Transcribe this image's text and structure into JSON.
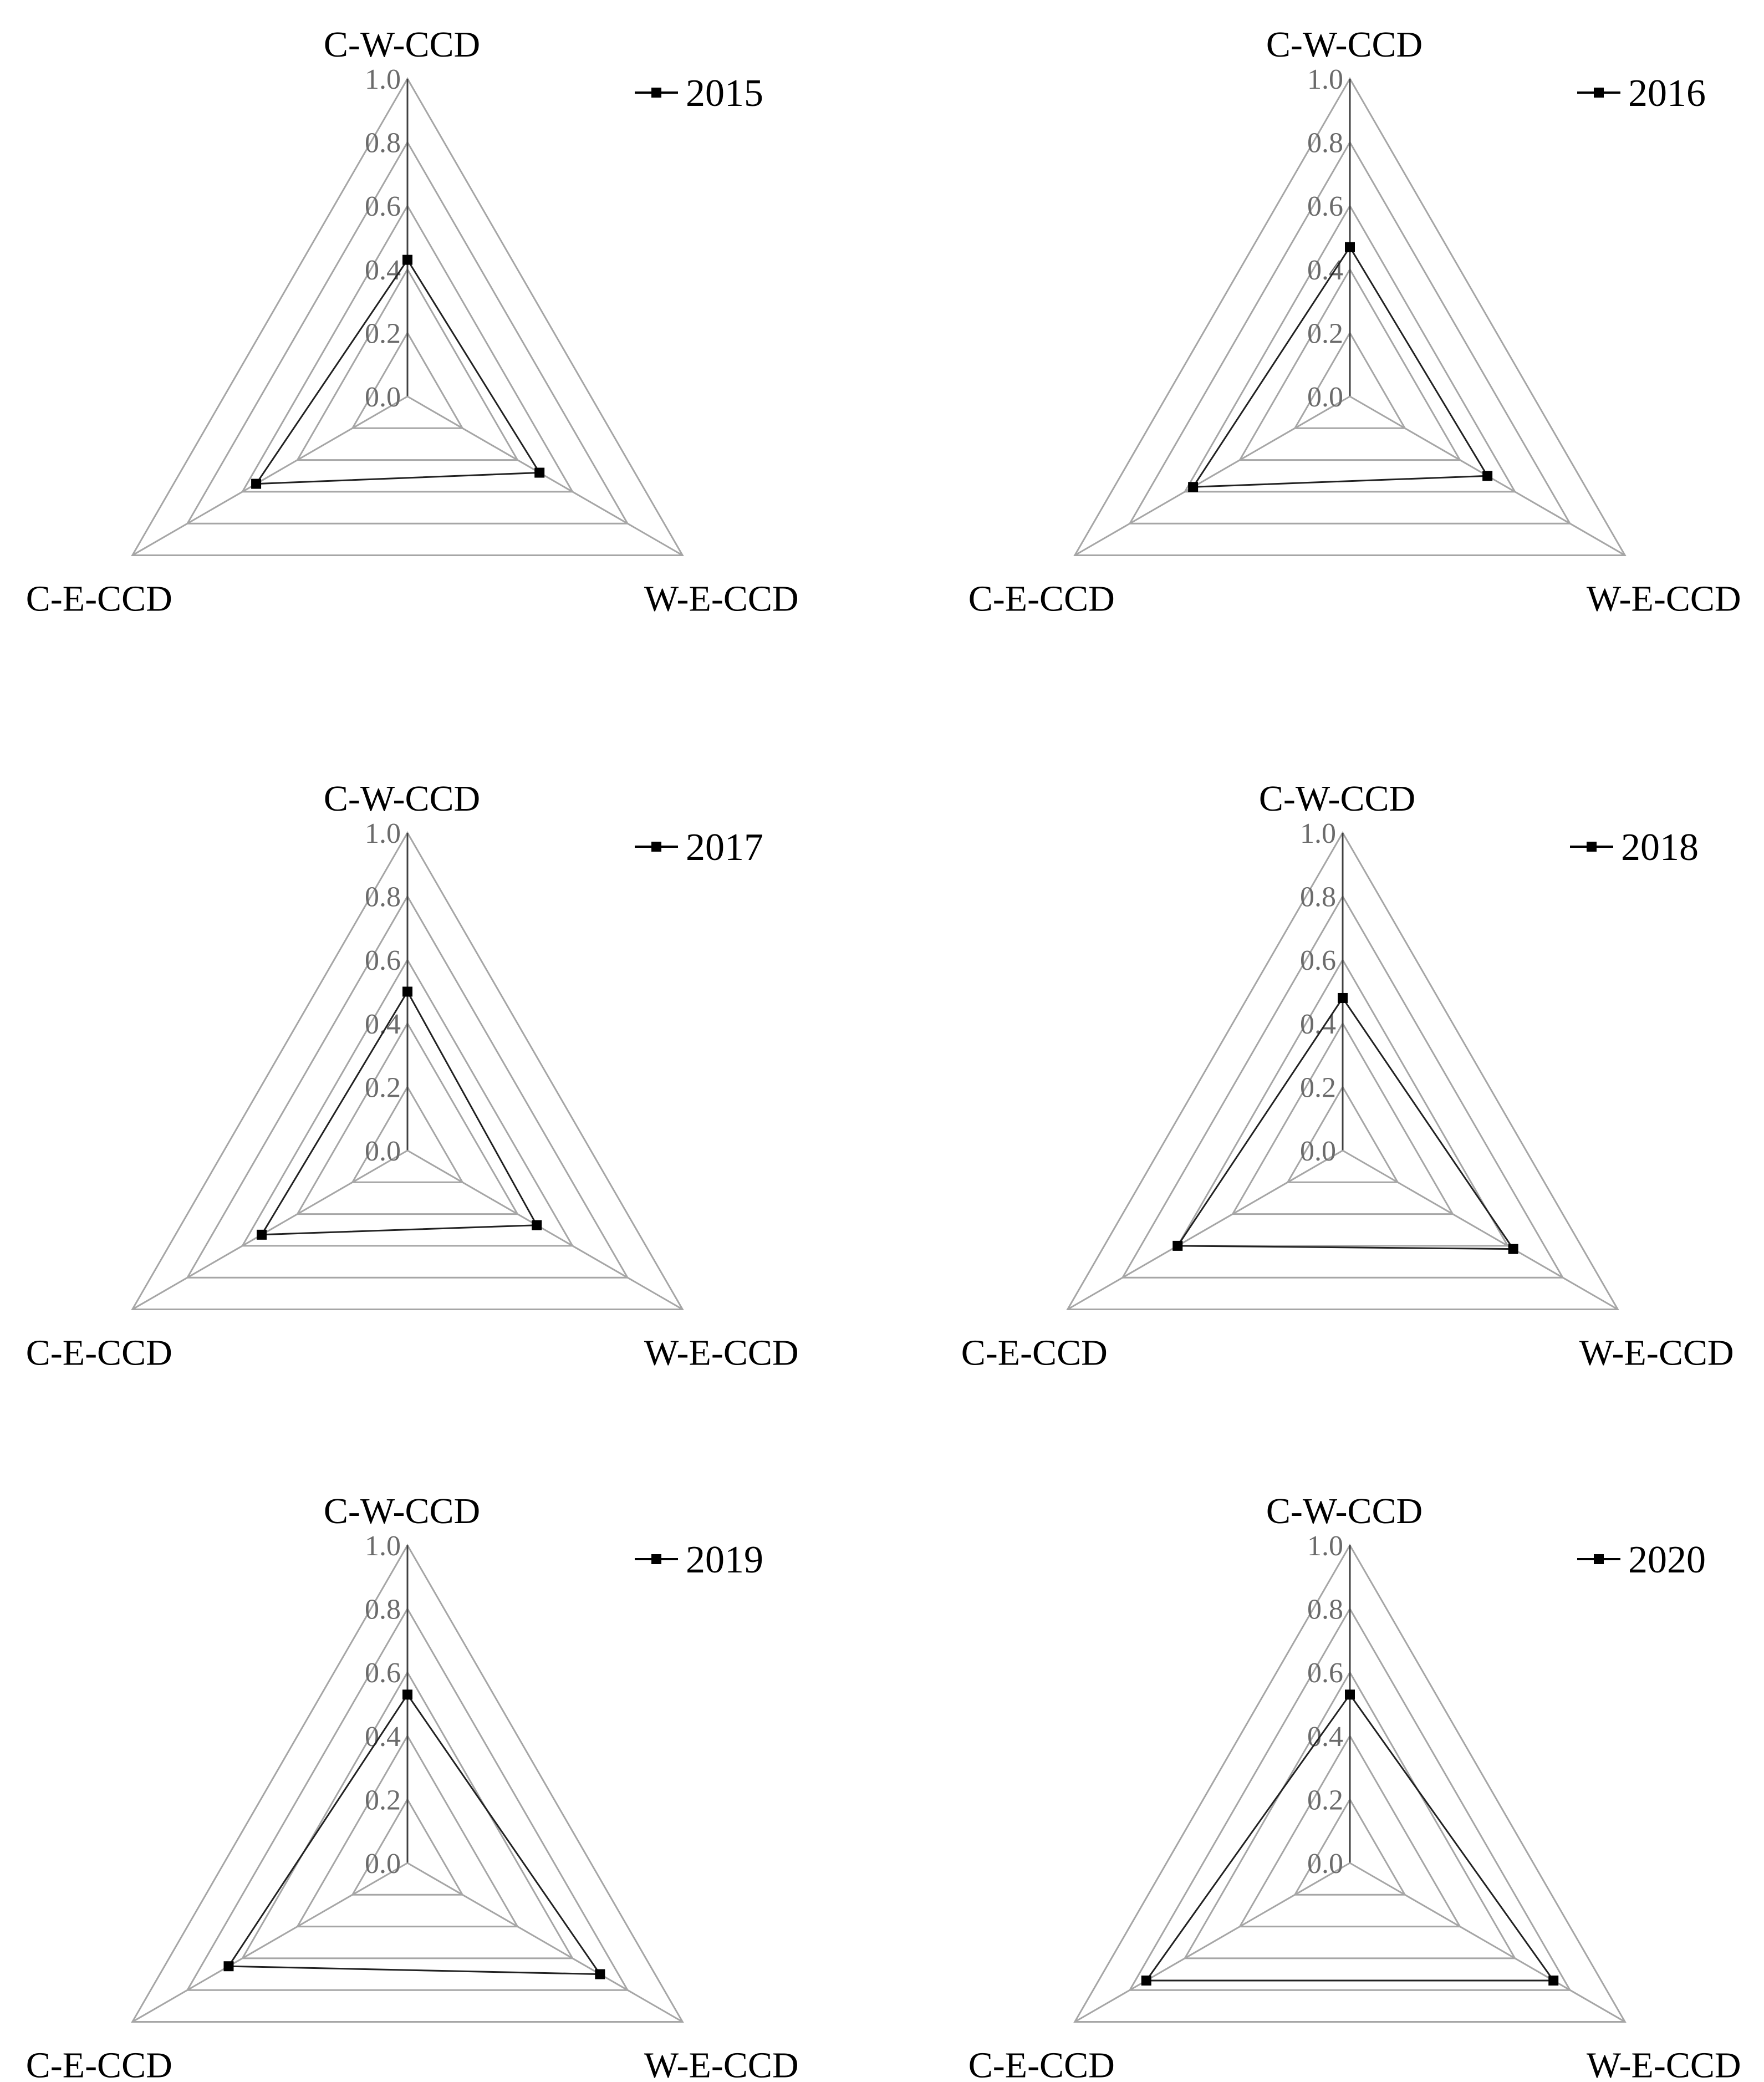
{
  "chart_data": [
    {
      "type": "radar",
      "axes": [
        "C-W-CCD",
        "W-E-CCD",
        "C-E-CCD"
      ],
      "ticks": [
        "0.0",
        "0.2",
        "0.4",
        "0.6",
        "0.8",
        "1.0"
      ],
      "rlim": [
        0,
        1
      ],
      "grid": true,
      "legend_position": "top-right",
      "series": [
        {
          "name": "2015",
          "values": [
            0.43,
            0.48,
            0.55
          ]
        }
      ]
    },
    {
      "type": "radar",
      "axes": [
        "C-W-CCD",
        "W-E-CCD",
        "C-E-CCD"
      ],
      "ticks": [
        "0.0",
        "0.2",
        "0.4",
        "0.6",
        "0.8",
        "1.0"
      ],
      "rlim": [
        0,
        1
      ],
      "grid": true,
      "legend_position": "top-right",
      "series": [
        {
          "name": "2016",
          "values": [
            0.47,
            0.5,
            0.57
          ]
        }
      ]
    },
    {
      "type": "radar",
      "axes": [
        "C-W-CCD",
        "W-E-CCD",
        "C-E-CCD"
      ],
      "ticks": [
        "0.0",
        "0.2",
        "0.4",
        "0.6",
        "0.8",
        "1.0"
      ],
      "rlim": [
        0,
        1
      ],
      "grid": true,
      "legend_position": "top-right",
      "series": [
        {
          "name": "2017",
          "values": [
            0.5,
            0.47,
            0.53
          ]
        }
      ]
    },
    {
      "type": "radar",
      "axes": [
        "C-W-CCD",
        "W-E-CCD",
        "C-E-CCD"
      ],
      "ticks": [
        "0.0",
        "0.2",
        "0.4",
        "0.6",
        "0.8",
        "1.0"
      ],
      "rlim": [
        0,
        1
      ],
      "grid": true,
      "legend_position": "top-right",
      "series": [
        {
          "name": "2018",
          "values": [
            0.48,
            0.62,
            0.6
          ]
        }
      ]
    },
    {
      "type": "radar",
      "axes": [
        "C-W-CCD",
        "W-E-CCD",
        "C-E-CCD"
      ],
      "ticks": [
        "0.0",
        "0.2",
        "0.4",
        "0.6",
        "0.8",
        "1.0"
      ],
      "rlim": [
        0,
        1
      ],
      "grid": true,
      "legend_position": "top-right",
      "series": [
        {
          "name": "2019",
          "values": [
            0.53,
            0.7,
            0.65
          ]
        }
      ]
    },
    {
      "type": "radar",
      "axes": [
        "C-W-CCD",
        "W-E-CCD",
        "C-E-CCD"
      ],
      "ticks": [
        "0.0",
        "0.2",
        "0.4",
        "0.6",
        "0.8",
        "1.0"
      ],
      "rlim": [
        0,
        1
      ],
      "grid": true,
      "legend_position": "top-right",
      "series": [
        {
          "name": "2020",
          "values": [
            0.53,
            0.74,
            0.74
          ]
        }
      ]
    }
  ]
}
